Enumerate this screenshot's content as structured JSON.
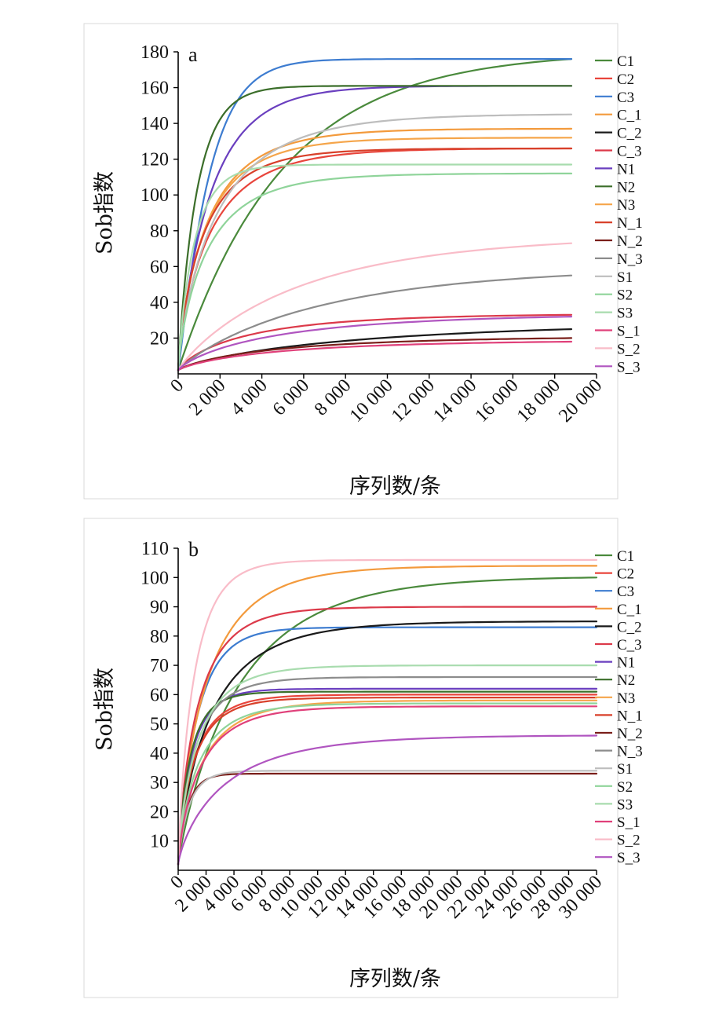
{
  "chart_data": [
    {
      "type": "line",
      "panel": "a",
      "title": "",
      "xlabel": "序列数/条",
      "ylabel": "Sob指数",
      "xlim": [
        0,
        20000
      ],
      "ylim": [
        0,
        180
      ],
      "x_ticks": [
        0,
        2000,
        4000,
        6000,
        8000,
        10000,
        12000,
        14000,
        16000,
        18000,
        20000
      ],
      "x_tick_labels": [
        "0",
        "2 000",
        "4 000",
        "6 000",
        "8 000",
        "10 000",
        "12 000",
        "14 000",
        "16 000",
        "18 000",
        "20 000"
      ],
      "y_ticks": [
        20,
        40,
        60,
        80,
        100,
        120,
        140,
        160,
        180
      ],
      "y_tick_labels": [
        "20",
        "40",
        "60",
        "80",
        "100",
        "120",
        "140",
        "160",
        "180"
      ],
      "x_end": 18800,
      "legend_position": "right",
      "series": [
        {
          "name": "C1",
          "color": "#4a8a3c",
          "final": 176,
          "k": 5000,
          "n": 1.0
        },
        {
          "name": "C2",
          "color": "#e8453c",
          "final": 126,
          "k": 1600,
          "n": 0.8
        },
        {
          "name": "C3",
          "color": "#3d7cd0",
          "final": 176,
          "k": 1500,
          "n": 1.1
        },
        {
          "name": "C_1",
          "color": "#f39a3c",
          "final": 137,
          "k": 1500,
          "n": 0.8
        },
        {
          "name": "C_2",
          "color": "#1a1a1a",
          "final": 25,
          "k": 9000,
          "n": 0.8
        },
        {
          "name": "C_3",
          "color": "#dc3a4a",
          "final": 33,
          "k": 3500,
          "n": 0.8
        },
        {
          "name": "N1",
          "color": "#6a3fbf",
          "final": 161,
          "k": 1600,
          "n": 0.9
        },
        {
          "name": "N2",
          "color": "#3b6e2a",
          "final": 161,
          "k": 900,
          "n": 0.95
        },
        {
          "name": "N3",
          "color": "#f5a54a",
          "final": 132,
          "k": 1400,
          "n": 0.8
        },
        {
          "name": "N_1",
          "color": "#d8402a",
          "final": 126,
          "k": 1300,
          "n": 0.8
        },
        {
          "name": "N_2",
          "color": "#7a1f1a",
          "final": 20,
          "k": 5000,
          "n": 0.8
        },
        {
          "name": "N_3",
          "color": "#8c8c8c",
          "final": 55,
          "k": 7000,
          "n": 0.9
        },
        {
          "name": "S1",
          "color": "#bdbdbd",
          "final": 145,
          "k": 2000,
          "n": 0.8
        },
        {
          "name": "S2",
          "color": "#8fd49a",
          "final": 112,
          "k": 1500,
          "n": 0.8
        },
        {
          "name": "S3",
          "color": "#a8dcae",
          "final": 117,
          "k": 800,
          "n": 0.9
        },
        {
          "name": "S_1",
          "color": "#e0407a",
          "final": 18,
          "k": 5000,
          "n": 0.8
        },
        {
          "name": "S_2",
          "color": "#f9bcc8",
          "final": 73,
          "k": 6000,
          "n": 0.9
        },
        {
          "name": "S_3",
          "color": "#b055c0",
          "final": 32,
          "k": 5000,
          "n": 0.8
        }
      ]
    },
    {
      "type": "line",
      "panel": "b",
      "title": "",
      "xlabel": "序列数/条",
      "ylabel": "Sob指数",
      "xlim": [
        0,
        30000
      ],
      "ylim": [
        0,
        110
      ],
      "x_ticks": [
        0,
        2000,
        4000,
        6000,
        8000,
        10000,
        12000,
        14000,
        16000,
        18000,
        20000,
        22000,
        24000,
        26000,
        28000,
        30000
      ],
      "x_tick_labels": [
        "0",
        "2 000",
        "4 000",
        "6 000",
        "8 000",
        "10 000",
        "12 000",
        "14 000",
        "16 000",
        "18 000",
        "20 000",
        "22 000",
        "24 000",
        "26 000",
        "28 000",
        "30 000"
      ],
      "y_ticks": [
        10,
        20,
        30,
        40,
        50,
        60,
        70,
        80,
        90,
        100,
        110
      ],
      "y_tick_labels": [
        "10",
        "20",
        "30",
        "40",
        "50",
        "60",
        "70",
        "80",
        "90",
        "100",
        "110"
      ],
      "x_end": 30000,
      "legend_position": "right",
      "series": [
        {
          "name": "C1",
          "color": "#4a8a3c",
          "final": 100,
          "k": 4500,
          "n": 0.9
        },
        {
          "name": "C2",
          "color": "#e8453c",
          "final": 60,
          "k": 1200,
          "n": 0.8
        },
        {
          "name": "C3",
          "color": "#3d7cd0",
          "final": 83,
          "k": 1400,
          "n": 0.9
        },
        {
          "name": "C_1",
          "color": "#f39a3c",
          "final": 104,
          "k": 2200,
          "n": 0.8
        },
        {
          "name": "C_2",
          "color": "#1a1a1a",
          "final": 85,
          "k": 2500,
          "n": 0.8
        },
        {
          "name": "C_3",
          "color": "#dc3a4a",
          "final": 90,
          "k": 1500,
          "n": 0.8
        },
        {
          "name": "N1",
          "color": "#6a3fbf",
          "final": 62,
          "k": 1000,
          "n": 0.85
        },
        {
          "name": "N2",
          "color": "#3b6e2a",
          "final": 61,
          "k": 900,
          "n": 0.85
        },
        {
          "name": "N3",
          "color": "#f5a54a",
          "final": 58,
          "k": 1800,
          "n": 0.8
        },
        {
          "name": "N_1",
          "color": "#d8402a",
          "final": 59,
          "k": 1200,
          "n": 0.8
        },
        {
          "name": "N_2",
          "color": "#7a1f1a",
          "final": 33,
          "k": 700,
          "n": 0.95
        },
        {
          "name": "N_3",
          "color": "#8c8c8c",
          "final": 66,
          "k": 1300,
          "n": 0.8
        },
        {
          "name": "S1",
          "color": "#bdbdbd",
          "final": 34,
          "k": 800,
          "n": 0.9
        },
        {
          "name": "S2",
          "color": "#8fd49a",
          "final": 57,
          "k": 1500,
          "n": 0.8
        },
        {
          "name": "S3",
          "color": "#a8dcae",
          "final": 70,
          "k": 1500,
          "n": 0.8
        },
        {
          "name": "S_1",
          "color": "#e0407a",
          "final": 56,
          "k": 1700,
          "n": 0.8
        },
        {
          "name": "S_2",
          "color": "#f9bcc8",
          "final": 106,
          "k": 1200,
          "n": 0.85
        },
        {
          "name": "S_3",
          "color": "#b055c0",
          "final": 46,
          "k": 3500,
          "n": 0.8
        }
      ]
    }
  ]
}
